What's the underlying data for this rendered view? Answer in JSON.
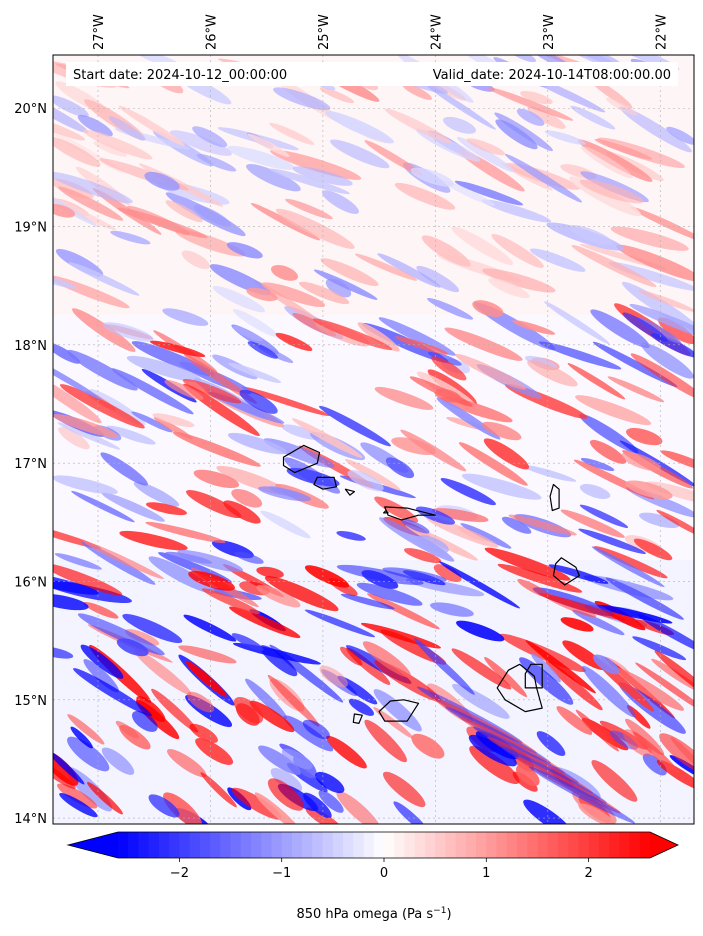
{
  "header": {
    "start_date": "Start date: 2024-10-12_00:00:00",
    "valid_date": "Valid_date: 2024-10-14T08:00:00.00"
  },
  "map": {
    "lon_labels": [
      "27°W",
      "26°W",
      "25°W",
      "24°W",
      "23°W",
      "22°W"
    ],
    "lat_labels": [
      "20°N",
      "19°N",
      "18°N",
      "17°N",
      "16°N",
      "15°N",
      "14°N"
    ],
    "lon_values": [
      -27,
      -26,
      -25,
      -24,
      -23,
      -22
    ],
    "lat_values": [
      20,
      19,
      18,
      17,
      16,
      15,
      14
    ],
    "extent": {
      "lon_min": -27.4,
      "lon_max": -21.7,
      "lat_min": 13.95,
      "lat_max": 20.45
    },
    "field": "850 hPa omega",
    "islands": [
      "Santo Antão",
      "São Vicente",
      "Santa Luzia",
      "São Nicolau",
      "Sal",
      "Boa Vista",
      "Brava",
      "Fogo",
      "Santiago",
      "Maio"
    ]
  },
  "colorbar": {
    "label": "850 hPa omega (Pa s",
    "label_exp": "−1",
    "label_close": ")",
    "ticks": [
      "−2",
      "−1",
      "0",
      "1",
      "2"
    ],
    "tick_values": [
      -2,
      -1,
      0,
      1,
      2
    ],
    "vmin": -2.6,
    "vmax": 2.6,
    "colormap": "bwr",
    "color_min": "#0000ff",
    "color_mid": "#ffffff",
    "color_max": "#ff0000"
  }
}
